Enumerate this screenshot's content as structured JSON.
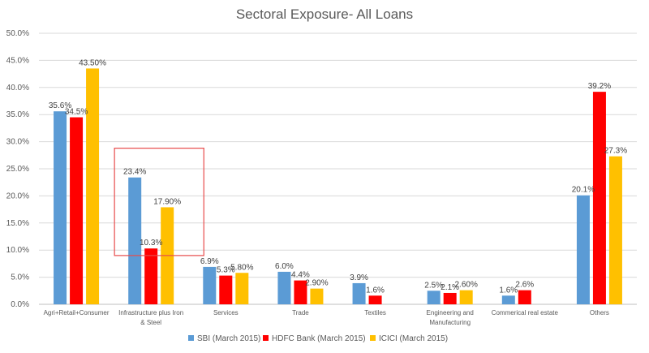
{
  "chart_data": {
    "type": "bar",
    "title": "Sectoral Exposure- All Loans",
    "xlabel": "",
    "ylabel": "",
    "ylim": [
      0,
      0.5
    ],
    "y_ticks": [
      "0.0%",
      "5.0%",
      "10.0%",
      "15.0%",
      "20.0%",
      "25.0%",
      "30.0%",
      "35.0%",
      "40.0%",
      "45.0%",
      "50.0%"
    ],
    "categories": [
      [
        "Agri+Retail+Consumer"
      ],
      [
        "Infrastructure plus Iron",
        "& Steel"
      ],
      [
        "Services"
      ],
      [
        "Trade"
      ],
      [
        "Textiles"
      ],
      [
        "Engineering and",
        "Manufacturing"
      ],
      [
        "Commerical real estate"
      ],
      [
        "Others"
      ]
    ],
    "series": [
      {
        "name": "SBI (March 2015)",
        "color": "#5B9BD5",
        "values": [
          0.356,
          0.234,
          0.069,
          0.06,
          0.039,
          0.025,
          0.016,
          0.201
        ],
        "labels": [
          "35.6%",
          "23.4%",
          "6.9%",
          "6.0%",
          "3.9%",
          "2.5%",
          "1.6%",
          "20.1%"
        ]
      },
      {
        "name": "HDFC Bank (March 2015)",
        "color": "#FF0000",
        "values": [
          0.345,
          0.103,
          0.053,
          0.044,
          0.016,
          0.021,
          0.026,
          0.392
        ],
        "labels": [
          "34.5%",
          "10.3%",
          "5.3%",
          "4.4%",
          "1.6%",
          "2.1%",
          "2.6%",
          "39.2%"
        ]
      },
      {
        "name": "ICICI (March 2015)",
        "color": "#FFC000",
        "values": [
          0.435,
          0.179,
          0.058,
          0.029,
          null,
          0.026,
          null,
          0.273
        ],
        "labels": [
          "43.50%",
          "17.90%",
          "5.80%",
          "2.90%",
          "",
          "2.60%",
          "",
          "27.3%"
        ]
      }
    ],
    "grid": true,
    "legend": "bottom-center",
    "annotation": {
      "type": "rectangle-highlight",
      "category": "Infrastructure plus Iron & Steel",
      "color": "#E84C4C"
    }
  }
}
